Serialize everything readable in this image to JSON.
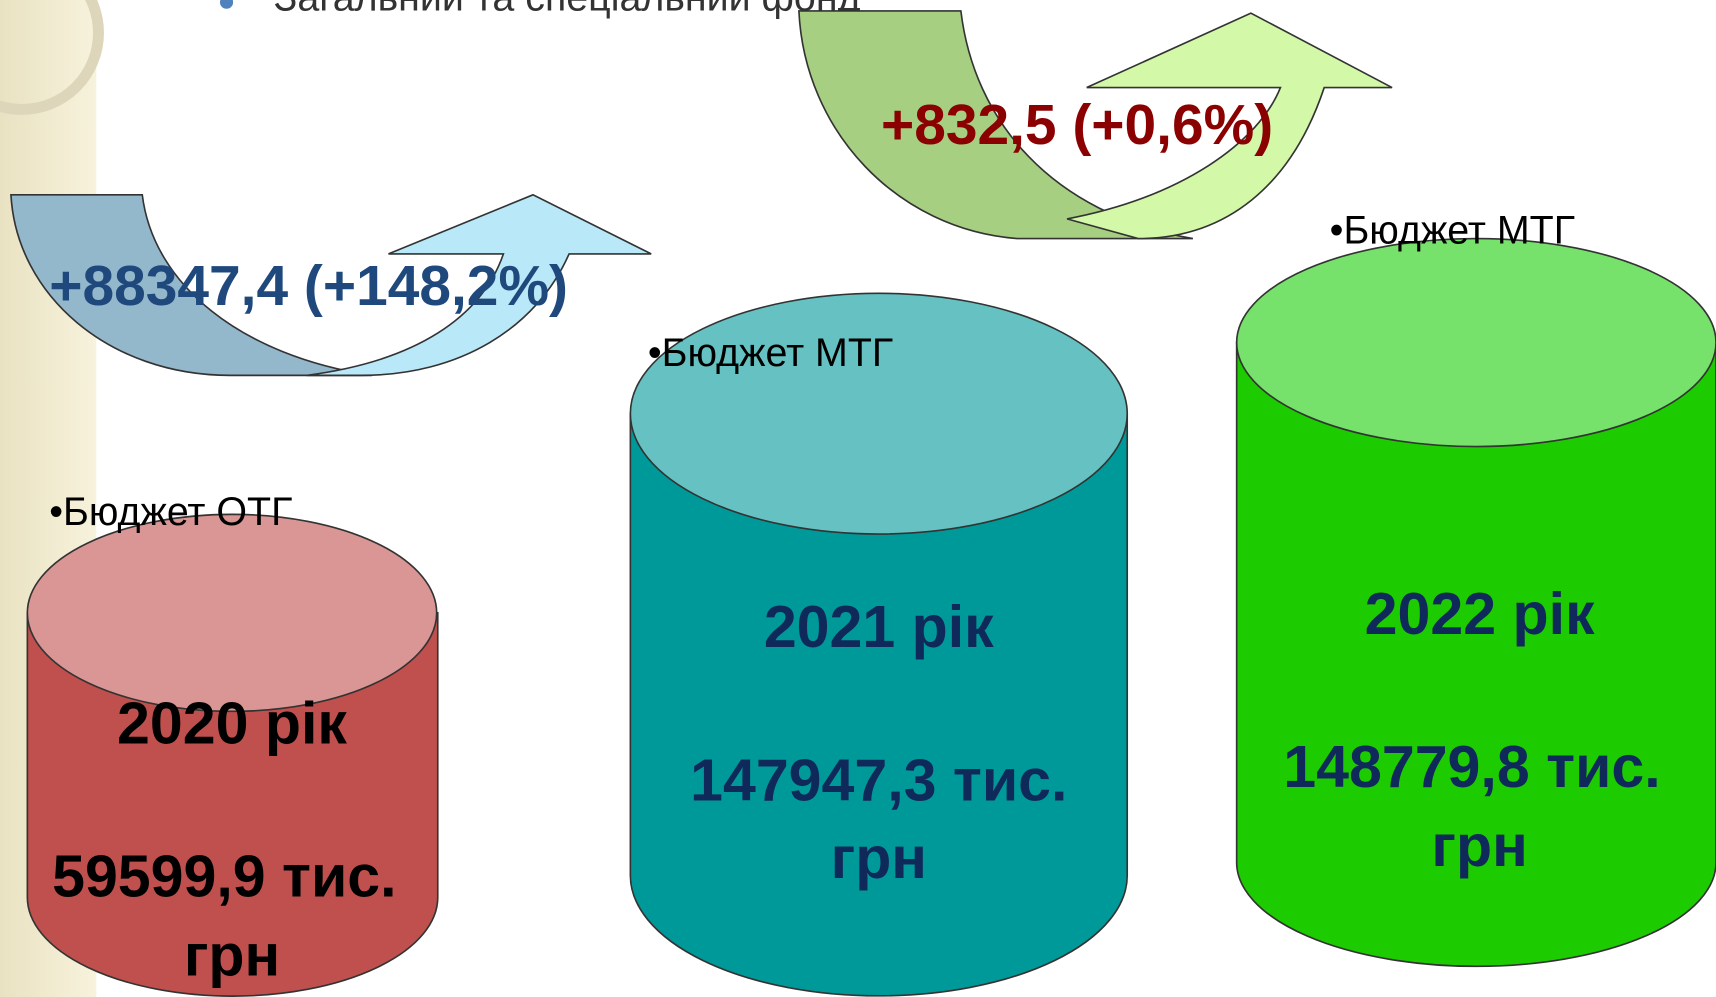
{
  "header": {
    "bullet": "Загальний та спеціальний фонд"
  },
  "changes": [
    "+88347,4 (+148,2%)",
    "+832,5 (+0,6%)"
  ],
  "cylinders": [
    {
      "label": "•Бюджет ОТГ",
      "year": "2020 рік",
      "amount": [
        "59599,9 тис.",
        "грн"
      ]
    },
    {
      "label": "•Бюджет МТГ",
      "year": "2021 рік",
      "amount": [
        "147947,3 тис.",
        "грн"
      ]
    },
    {
      "label": "•Бюджет МТГ",
      "year": "2022 рік",
      "amount": [
        "148779,8 тис.",
        "грн"
      ]
    }
  ]
}
